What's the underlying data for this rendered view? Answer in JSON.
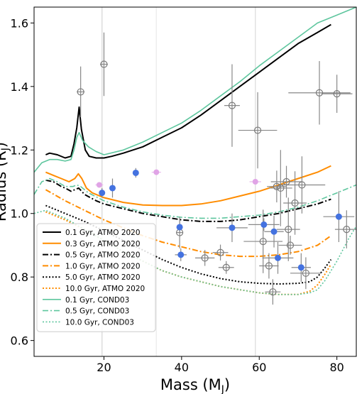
{
  "chart_data": {
    "type": "scatter",
    "title": "",
    "xlabel": "Mass (M",
    "xlabel_sub": "J",
    "xlabel_close": ")",
    "ylabel": "Radius (R",
    "ylabel_sub": "J",
    "ylabel_close": ")",
    "xlim": [
      2,
      85
    ],
    "ylim": [
      0.55,
      1.65
    ],
    "xticks": [
      20,
      40,
      60,
      80
    ],
    "yticks": [
      0.6,
      0.8,
      1.0,
      1.2,
      1.4,
      1.6
    ],
    "grid": false,
    "legend_position": "lower-left",
    "vertical_lines": [
      {
        "x": 19.5,
        "color": "#dddddd"
      },
      {
        "x": 33.5,
        "color": "#eeeeee"
      },
      {
        "x": 59.0,
        "color": "#e2e2e2"
      }
    ],
    "series": [
      {
        "name": "0.1 Gyr, ATMO 2020",
        "color": "#000000",
        "dash": "solid",
        "width": 2,
        "x": [
          5,
          6,
          8,
          10,
          11.5,
          12.3,
          13,
          13.6,
          14.2,
          15.2,
          16.2,
          18,
          20,
          22,
          25,
          30,
          35,
          40,
          45,
          50,
          55,
          60,
          65,
          70,
          75,
          78.5
        ],
        "y": [
          1.185,
          1.19,
          1.185,
          1.175,
          1.18,
          1.22,
          1.27,
          1.335,
          1.265,
          1.2,
          1.18,
          1.175,
          1.175,
          1.18,
          1.19,
          1.21,
          1.24,
          1.27,
          1.31,
          1.355,
          1.4,
          1.445,
          1.49,
          1.535,
          1.57,
          1.595
        ]
      },
      {
        "name": "0.3 Gyr, ATMO 2020",
        "color": "#ff8c00",
        "dash": "solid",
        "width": 2,
        "x": [
          5,
          7,
          9,
          11,
          12.5,
          13.4,
          14.3,
          15.5,
          17,
          20,
          25,
          30,
          35,
          40,
          45,
          50,
          55,
          60,
          65,
          70,
          75,
          78.5
        ],
        "y": [
          1.13,
          1.12,
          1.11,
          1.1,
          1.11,
          1.125,
          1.11,
          1.08,
          1.065,
          1.05,
          1.035,
          1.027,
          1.025,
          1.025,
          1.03,
          1.04,
          1.055,
          1.07,
          1.09,
          1.11,
          1.13,
          1.15
        ]
      },
      {
        "name": "0.5 Gyr, ATMO 2020",
        "color": "#000000",
        "dash": "8,3,2,3",
        "width": 2,
        "x": [
          5,
          7,
          9,
          10,
          11.5,
          12.5,
          13.5,
          15,
          18,
          20,
          25,
          30,
          35,
          40,
          45,
          50,
          55,
          60,
          65,
          70,
          75,
          78.5
        ],
        "y": [
          1.105,
          1.1,
          1.085,
          1.08,
          1.07,
          1.075,
          1.08,
          1.06,
          1.04,
          1.03,
          1.015,
          1.0,
          0.99,
          0.98,
          0.975,
          0.975,
          0.98,
          0.99,
          1.0,
          1.015,
          1.03,
          1.045
        ]
      },
      {
        "name": "1.0 Gyr, ATMO 2020",
        "color": "#ff8c00",
        "dash": "8,3,2,3",
        "width": 2,
        "x": [
          5,
          10,
          15,
          20,
          25,
          30,
          35,
          40,
          45,
          50,
          55,
          60,
          65,
          70,
          75,
          78.5
        ],
        "y": [
          1.075,
          1.04,
          1.01,
          0.98,
          0.955,
          0.93,
          0.91,
          0.895,
          0.88,
          0.87,
          0.865,
          0.865,
          0.87,
          0.88,
          0.9,
          0.93
        ]
      },
      {
        "name": "5.0 Gyr, ATMO 2020",
        "color": "#000000",
        "dash": "2,2.5",
        "width": 2,
        "x": [
          5,
          10,
          15,
          20,
          25,
          30,
          35,
          40,
          45,
          50,
          55,
          60,
          65,
          70,
          73,
          75,
          77,
          78.5
        ],
        "y": [
          1.025,
          1.0,
          0.975,
          0.945,
          0.915,
          0.885,
          0.855,
          0.83,
          0.81,
          0.795,
          0.785,
          0.78,
          0.778,
          0.78,
          0.785,
          0.8,
          0.83,
          0.855
        ]
      },
      {
        "name": "10.0 Gyr, ATMO 2020",
        "color": "#ff8c00",
        "dash": "2,2.5",
        "width": 2,
        "x": [
          5,
          10,
          15,
          20,
          25,
          30,
          35,
          40,
          45,
          50,
          55,
          60,
          65,
          70,
          73,
          75,
          77,
          78.5
        ],
        "y": [
          1.005,
          0.98,
          0.95,
          0.915,
          0.88,
          0.85,
          0.82,
          0.8,
          0.785,
          0.77,
          0.76,
          0.75,
          0.745,
          0.745,
          0.755,
          0.775,
          0.81,
          0.84
        ]
      },
      {
        "name": "0.1 Gyr, COND03",
        "color": "#5ec69e",
        "dash": "solid",
        "width": 1.6,
        "x": [
          2,
          4,
          6,
          8,
          10,
          11.5,
          12.3,
          13,
          13.6,
          14.5,
          16,
          18,
          20,
          25,
          30,
          35,
          40,
          45,
          50,
          55,
          60,
          65,
          70,
          75,
          80,
          85
        ],
        "y": [
          1.13,
          1.16,
          1.17,
          1.17,
          1.165,
          1.17,
          1.2,
          1.24,
          1.255,
          1.23,
          1.21,
          1.195,
          1.185,
          1.2,
          1.225,
          1.255,
          1.285,
          1.325,
          1.37,
          1.415,
          1.465,
          1.51,
          1.555,
          1.6,
          1.625,
          1.65
        ]
      },
      {
        "name": "0.5 Gyr, COND03",
        "color": "#5ec69e",
        "dash": "8,3,2,3",
        "width": 1.6,
        "x": [
          2,
          4,
          6,
          8,
          10,
          12,
          13,
          14,
          16,
          20,
          25,
          30,
          35,
          40,
          45,
          50,
          55,
          60,
          65,
          70,
          75,
          80,
          85
        ],
        "y": [
          1.06,
          1.1,
          1.11,
          1.1,
          1.085,
          1.085,
          1.09,
          1.085,
          1.065,
          1.04,
          1.02,
          1.005,
          0.995,
          0.988,
          0.985,
          0.985,
          0.99,
          0.995,
          1.005,
          1.02,
          1.04,
          1.065,
          1.09
        ]
      },
      {
        "name": "10.0 Gyr, COND03",
        "color": "#5ec69e",
        "dash": "2,2.5",
        "width": 1.6,
        "x": [
          2,
          5,
          10,
          15,
          20,
          25,
          30,
          35,
          40,
          45,
          50,
          55,
          60,
          65,
          70,
          73,
          75,
          77,
          80,
          83,
          85
        ],
        "y": [
          1.0,
          1.01,
          0.985,
          0.95,
          0.915,
          0.88,
          0.85,
          0.82,
          0.8,
          0.785,
          0.77,
          0.76,
          0.75,
          0.745,
          0.745,
          0.75,
          0.76,
          0.79,
          0.85,
          0.92,
          0.96
        ]
      }
    ],
    "points_filled": [
      {
        "x": 19.5,
        "y": 1.065,
        "xerr": 0.6,
        "yerr": 0.015
      },
      {
        "x": 22.2,
        "y": 1.08,
        "xerr": 0.6,
        "yerr": 0.03
      },
      {
        "x": 28.2,
        "y": 1.128,
        "xerr": 0.6,
        "yerr": 0.015
      },
      {
        "x": 39.5,
        "y": 0.957,
        "xerr": 0.8,
        "yerr": 0.02
      },
      {
        "x": 39.8,
        "y": 0.87,
        "xerr": 1.5,
        "yerr": 0.02
      },
      {
        "x": 53.0,
        "y": 0.955,
        "xerr": 4,
        "yerr": 0.045
      },
      {
        "x": 61.2,
        "y": 0.965,
        "xerr": 4,
        "yerr": 0.02
      },
      {
        "x": 63.8,
        "y": 0.943,
        "xerr": 2.5,
        "yerr": 0.05
      },
      {
        "x": 64.8,
        "y": 0.86,
        "xerr": 4,
        "yerr": 0.05
      },
      {
        "x": 70.8,
        "y": 0.83,
        "xerr": 2.5,
        "yerr": 0.045
      },
      {
        "x": 80.5,
        "y": 0.99,
        "xerr": 4,
        "yerr": 0.08
      }
    ],
    "points_pink": [
      {
        "x": 18.8,
        "y": 1.09,
        "xerr": 1.0
      },
      {
        "x": 33.5,
        "y": 1.13,
        "xerr": 1.2
      },
      {
        "x": 59.0,
        "y": 1.1,
        "xerr": 1.5
      }
    ],
    "points_open": [
      {
        "x": 14.0,
        "y": 1.383,
        "xerr": 1.0,
        "yerr": 0.08
      },
      {
        "x": 20.0,
        "y": 1.47,
        "xerr": 1.0,
        "yerr": 0.1
      },
      {
        "x": 39.5,
        "y": 0.94,
        "xerr": 0.8,
        "yerr": 0.05
      },
      {
        "x": 46.0,
        "y": 0.86,
        "xerr": 2.5,
        "yerr": 0.025
      },
      {
        "x": 50.0,
        "y": 0.877,
        "xerr": 2,
        "yerr": 0.025
      },
      {
        "x": 53.0,
        "y": 1.34,
        "xerr": 2,
        "yerr": 0.13
      },
      {
        "x": 59.6,
        "y": 1.262,
        "xerr": 5,
        "yerr": 0.12
      },
      {
        "x": 51.5,
        "y": 0.83,
        "xerr": 2,
        "yerr": 0.02
      },
      {
        "x": 61.0,
        "y": 0.912,
        "xerr": 5,
        "yerr": 0.1
      },
      {
        "x": 62.5,
        "y": 0.835,
        "xerr": 2.5,
        "yerr": 0.04
      },
      {
        "x": 63.5,
        "y": 0.753,
        "xerr": 2,
        "yerr": 0.04
      },
      {
        "x": 64.5,
        "y": 1.085,
        "xerr": 2.5,
        "yerr": 0.05
      },
      {
        "x": 65.5,
        "y": 1.08,
        "xerr": 3,
        "yerr": 0.12
      },
      {
        "x": 67.0,
        "y": 1.1,
        "xerr": 4,
        "yerr": 0.05
      },
      {
        "x": 67.5,
        "y": 0.95,
        "xerr": 3,
        "yerr": 0.1
      },
      {
        "x": 68.0,
        "y": 0.9,
        "xerr": 3,
        "yerr": 0.03
      },
      {
        "x": 69.2,
        "y": 1.033,
        "xerr": 3,
        "yerr": 0.1
      },
      {
        "x": 71.0,
        "y": 1.09,
        "xerr": 6,
        "yerr": 0.09
      },
      {
        "x": 72.0,
        "y": 0.812,
        "xerr": 4,
        "yerr": 0.05
      },
      {
        "x": 75.5,
        "y": 1.38,
        "xerr": 8,
        "yerr": 0.1
      },
      {
        "x": 80.0,
        "y": 1.377,
        "xerr": 4,
        "yerr": 0.06
      },
      {
        "x": 82.5,
        "y": 0.95,
        "xerr": 3,
        "yerr": 0.06
      }
    ],
    "colors": {
      "filled_point": "#4472e0",
      "pink_point": "#e0a4e6",
      "open_edge": "#7a7a7a",
      "errorbar": "#888888",
      "pink_errorbar": "#e8bcec"
    }
  }
}
